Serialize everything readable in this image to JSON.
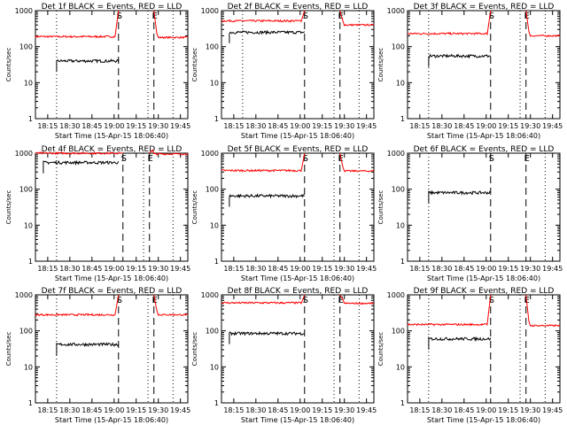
{
  "figure": {
    "title_template": "Det {n}f BLACK = Events, RED = LLD",
    "xlabel": "Start Time (15-Apr-15 18:06:40)",
    "ylabel": "Counts/sec"
  },
  "chart_data": [
    {
      "type": "line",
      "title": "Det 1f BLACK = Events, RED = LLD",
      "xlabel": "Start Time (15-Apr-15 18:06:40)",
      "ylabel": "Counts/sec",
      "ylog": true,
      "ylim": [
        1,
        1000
      ],
      "xticks": [
        "18:15",
        "18:30",
        "18:45",
        "19:00",
        "19:15",
        "19:30",
        "19:45"
      ],
      "yticks": [
        "1",
        "10",
        "100",
        "1000"
      ],
      "markers": [
        {
          "label": "S",
          "x": "19:03",
          "style": "dashed"
        },
        {
          "label": "E",
          "x": "19:27",
          "style": "dashed"
        },
        {
          "label": "",
          "x": "18:21",
          "style": "dotted"
        },
        {
          "label": "",
          "x": "19:23",
          "style": "dotted"
        },
        {
          "label": "",
          "x": "19:40",
          "style": "dotted"
        }
      ],
      "series": [
        {
          "name": "LLD",
          "color": "#ff0000",
          "x_start": "18:06:40",
          "x_end": "19:50",
          "base": 190,
          "peak": 1000,
          "gap_at": "19:03",
          "gap_end": "19:27",
          "after": 180
        },
        {
          "name": "Events",
          "color": "#000000",
          "x_start": "18:21",
          "x_end": "19:03",
          "base": 40
        }
      ]
    },
    {
      "type": "line",
      "title": "Det 2f BLACK = Events, RED = LLD",
      "xlabel": "Start Time (15-Apr-15 18:06:40)",
      "ylabel": "Counts/sec",
      "ylog": true,
      "ylim": [
        1,
        1000
      ],
      "xticks": [
        "18:15",
        "18:30",
        "18:45",
        "19:00",
        "19:15",
        "19:30",
        "19:45"
      ],
      "yticks": [
        "1",
        "10",
        "100",
        "1000"
      ],
      "markers": [
        {
          "label": "S",
          "x": "19:03",
          "style": "dashed"
        },
        {
          "label": "E",
          "x": "19:27",
          "style": "dashed"
        },
        {
          "label": "",
          "x": "18:21",
          "style": "dotted"
        },
        {
          "label": "",
          "x": "19:23",
          "style": "dotted"
        },
        {
          "label": "",
          "x": "19:40",
          "style": "dotted"
        }
      ],
      "series": [
        {
          "name": "LLD",
          "color": "#ff0000",
          "x_start": "18:06:40",
          "x_end": "19:50",
          "base": 520,
          "peak": 1000,
          "gap_at": "19:03",
          "gap_end": "19:27",
          "after": 400
        },
        {
          "name": "Events",
          "color": "#000000",
          "x_start": "18:12",
          "x_end": "19:03",
          "base": 250
        }
      ]
    },
    {
      "type": "line",
      "title": "Det 3f BLACK = Events, RED = LLD",
      "xlabel": "Start Time (15-Apr-15 18:06:40)",
      "ylabel": "Counts/sec",
      "ylog": true,
      "ylim": [
        1,
        1000
      ],
      "xticks": [
        "18:15",
        "18:30",
        "18:45",
        "19:00",
        "19:15",
        "19:30",
        "19:45"
      ],
      "yticks": [
        "1",
        "10",
        "100",
        "1000"
      ],
      "markers": [
        {
          "label": "S",
          "x": "19:03",
          "style": "dashed"
        },
        {
          "label": "E",
          "x": "19:27",
          "style": "dashed"
        },
        {
          "label": "",
          "x": "18:21",
          "style": "dotted"
        },
        {
          "label": "",
          "x": "19:23",
          "style": "dotted"
        },
        {
          "label": "",
          "x": "19:40",
          "style": "dotted"
        }
      ],
      "series": [
        {
          "name": "LLD",
          "color": "#ff0000",
          "x_start": "18:06:40",
          "x_end": "19:50",
          "base": 230,
          "peak": 1000,
          "gap_at": "19:03",
          "gap_end": "19:27",
          "after": 200
        },
        {
          "name": "Events",
          "color": "#000000",
          "x_start": "18:21",
          "x_end": "19:03",
          "base": 55
        }
      ]
    },
    {
      "type": "line",
      "title": "Det 4f BLACK = Events, RED = LLD",
      "xlabel": "Start Time (15-Apr-15 18:06:40)",
      "ylabel": "Counts/sec",
      "ylog": true,
      "ylim": [
        1,
        1000
      ],
      "xticks": [
        "18:15",
        "18:30",
        "18:45",
        "19:00",
        "19:15",
        "19:30",
        "19:45"
      ],
      "yticks": [
        "1",
        "10",
        "100",
        "1000"
      ],
      "markers": [
        {
          "label": "S",
          "x": "19:06",
          "style": "dashed"
        },
        {
          "label": "E",
          "x": "19:24",
          "style": "dashed"
        },
        {
          "label": "",
          "x": "18:21",
          "style": "dotted"
        },
        {
          "label": "",
          "x": "19:20",
          "style": "dotted"
        },
        {
          "label": "",
          "x": "19:40",
          "style": "dotted"
        }
      ],
      "series": [
        {
          "name": "LLD",
          "color": "#ff0000",
          "x_start": "18:06:40",
          "x_end": "19:50",
          "base": 1000,
          "peak": 1000,
          "gap_at": "19:06",
          "gap_end": "19:24",
          "after": 950
        },
        {
          "name": "Events",
          "color": "#000000",
          "x_start": "18:12",
          "x_end": "19:03",
          "base": 550
        }
      ]
    },
    {
      "type": "line",
      "title": "Det 5f BLACK = Events, RED = LLD",
      "xlabel": "Start Time (15-Apr-15 18:06:40)",
      "ylabel": "Counts/sec",
      "ylog": true,
      "ylim": [
        1,
        1000
      ],
      "xticks": [
        "18:15",
        "18:30",
        "18:45",
        "19:00",
        "19:15",
        "19:30",
        "19:45"
      ],
      "yticks": [
        "1",
        "10",
        "100",
        "1000"
      ],
      "markers": [
        {
          "label": "S",
          "x": "19:03",
          "style": "dashed"
        },
        {
          "label": "E",
          "x": "19:27",
          "style": "dashed"
        },
        {
          "label": "",
          "x": "19:23",
          "style": "dotted"
        },
        {
          "label": "",
          "x": "19:40",
          "style": "dotted"
        }
      ],
      "series": [
        {
          "name": "LLD",
          "color": "#ff0000",
          "x_start": "18:06:40",
          "x_end": "19:50",
          "base": 330,
          "peak": 1000,
          "gap_at": "19:03",
          "gap_end": "19:27",
          "after": 320
        },
        {
          "name": "Events",
          "color": "#000000",
          "x_start": "18:12",
          "x_end": "19:03",
          "base": 65
        }
      ]
    },
    {
      "type": "line",
      "title": "Det 6f BLACK = Events, RED = LLD",
      "xlabel": "Start Time (15-Apr-15 18:06:40)",
      "ylabel": "Counts/sec",
      "ylog": true,
      "ylim": [
        1,
        1000
      ],
      "xticks": [
        "18:15",
        "18:30",
        "18:45",
        "19:00",
        "19:15",
        "19:30",
        "19:45"
      ],
      "yticks": [
        "1",
        "10",
        "100",
        "1000"
      ],
      "markers": [
        {
          "label": "S",
          "x": "19:03",
          "style": "dashed"
        },
        {
          "label": "E",
          "x": "19:27",
          "style": "dashed"
        },
        {
          "label": "",
          "x": "18:21",
          "style": "dotted"
        },
        {
          "label": "",
          "x": "19:40",
          "style": "dotted"
        }
      ],
      "series": [
        {
          "name": "Events",
          "color": "#000000",
          "x_start": "18:21",
          "x_end": "19:03",
          "base": 80
        }
      ]
    },
    {
      "type": "line",
      "title": "Det 7f BLACK = Events, RED = LLD",
      "xlabel": "Start Time (15-Apr-15 18:06:40)",
      "ylabel": "Counts/sec",
      "ylog": true,
      "ylim": [
        1,
        1000
      ],
      "xticks": [
        "18:15",
        "18:30",
        "18:45",
        "19:00",
        "19:15",
        "19:30",
        "19:45"
      ],
      "yticks": [
        "1",
        "10",
        "100",
        "1000"
      ],
      "markers": [
        {
          "label": "S",
          "x": "19:03",
          "style": "dashed"
        },
        {
          "label": "E",
          "x": "19:27",
          "style": "dashed"
        },
        {
          "label": "",
          "x": "18:21",
          "style": "dotted"
        },
        {
          "label": "",
          "x": "19:23",
          "style": "dotted"
        },
        {
          "label": "",
          "x": "19:40",
          "style": "dotted"
        }
      ],
      "series": [
        {
          "name": "LLD",
          "color": "#ff0000",
          "x_start": "18:06:40",
          "x_end": "19:50",
          "base": 280,
          "peak": 1000,
          "gap_at": "19:03",
          "gap_end": "19:27",
          "after": 280
        },
        {
          "name": "Events",
          "color": "#000000",
          "x_start": "18:21",
          "x_end": "19:03",
          "base": 42
        }
      ]
    },
    {
      "type": "line",
      "title": "Det 8f BLACK = Events, RED = LLD",
      "xlabel": "Start Time (15-Apr-15 18:06:40)",
      "ylabel": "Counts/sec",
      "ylog": true,
      "ylim": [
        1,
        1000
      ],
      "xticks": [
        "18:15",
        "18:30",
        "18:45",
        "19:00",
        "19:15",
        "19:30",
        "19:45"
      ],
      "yticks": [
        "1",
        "10",
        "100",
        "1000"
      ],
      "markers": [
        {
          "label": "S",
          "x": "19:03",
          "style": "dashed"
        },
        {
          "label": "E",
          "x": "19:27",
          "style": "dashed"
        },
        {
          "label": "",
          "x": "19:23",
          "style": "dotted"
        },
        {
          "label": "",
          "x": "19:40",
          "style": "dotted"
        }
      ],
      "series": [
        {
          "name": "LLD",
          "color": "#ff0000",
          "x_start": "18:06:40",
          "x_end": "19:50",
          "base": 600,
          "peak": 1000,
          "gap_at": "19:03",
          "gap_end": "19:27",
          "after": 580
        },
        {
          "name": "Events",
          "color": "#000000",
          "x_start": "18:12",
          "x_end": "19:03",
          "base": 85
        }
      ]
    },
    {
      "type": "line",
      "title": "Det 9f BLACK = Events, RED = LLD",
      "xlabel": "Start Time (15-Apr-15 18:06:40)",
      "ylabel": "Counts/sec",
      "ylog": true,
      "ylim": [
        1,
        1000
      ],
      "xticks": [
        "18:15",
        "18:30",
        "18:45",
        "19:00",
        "19:15",
        "19:30",
        "19:45"
      ],
      "yticks": [
        "1",
        "10",
        "100",
        "1000"
      ],
      "markers": [
        {
          "label": "S",
          "x": "19:03",
          "style": "dashed"
        },
        {
          "label": "E",
          "x": "19:27",
          "style": "dashed"
        },
        {
          "label": "",
          "x": "18:21",
          "style": "dotted"
        },
        {
          "label": "",
          "x": "19:23",
          "style": "dotted"
        },
        {
          "label": "",
          "x": "19:40",
          "style": "dotted"
        }
      ],
      "series": [
        {
          "name": "LLD",
          "color": "#ff0000",
          "x_start": "18:06:40",
          "x_end": "19:50",
          "base": 150,
          "peak": 1000,
          "gap_at": "19:03",
          "gap_end": "19:27",
          "after": 140
        },
        {
          "name": "Events",
          "color": "#000000",
          "x_start": "18:21",
          "x_end": "19:03",
          "base": 60
        }
      ]
    }
  ]
}
